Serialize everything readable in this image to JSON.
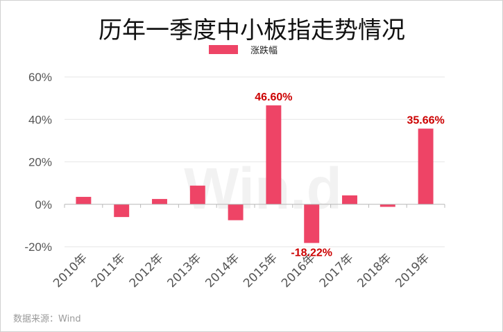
{
  "chart_data": {
    "type": "bar",
    "title": "历年一季度中小板指走势情况",
    "legend": {
      "label": "涨跌幅",
      "placement": "top-center"
    },
    "categories": [
      "2010年",
      "2011年",
      "2012年",
      "2013年",
      "2014年",
      "2015年",
      "2016年",
      "2017年",
      "2018年",
      "2019年"
    ],
    "series": [
      {
        "name": "涨跌幅",
        "values": [
          3.5,
          -6.0,
          2.5,
          8.8,
          -7.5,
          46.6,
          -18.22,
          4.2,
          -1.2,
          35.66
        ]
      }
    ],
    "data_labels": [
      {
        "category": "2015年",
        "text": "46.60%"
      },
      {
        "category": "2016年",
        "text": "-18.22%"
      },
      {
        "category": "2019年",
        "text": "35.66%"
      }
    ],
    "y_ticks": [
      "60%",
      "40%",
      "20%",
      "0%",
      "-20%"
    ],
    "y_tick_values": [
      60,
      40,
      20,
      0,
      -20
    ],
    "ylim": [
      -20,
      60
    ],
    "grid": true,
    "bar_color": "#ee4466",
    "label_color": "#cc0000",
    "source": "数据来源：Wind",
    "watermark": "Win.d"
  }
}
